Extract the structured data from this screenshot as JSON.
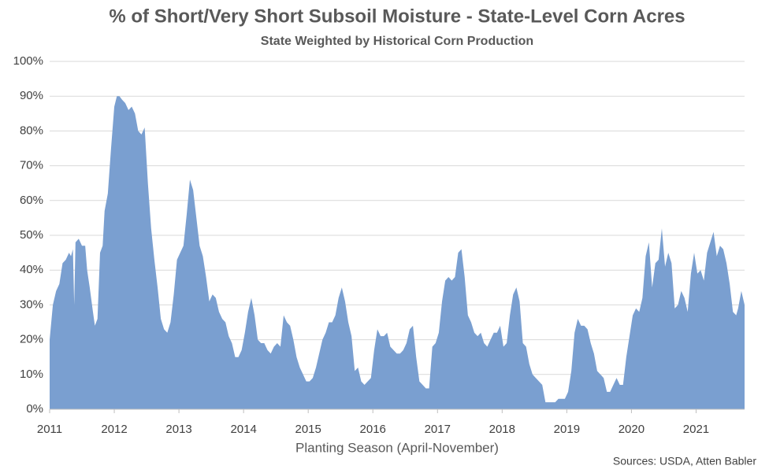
{
  "chart_data": {
    "type": "area",
    "title": "% of Short/Very Short Subsoil Moisture - State-Level Corn Acres",
    "subtitle": "State Weighted by Historical Corn Production",
    "x_label": "Planting Season (April-November)",
    "source": "Sources: USDA, Atten Babler",
    "color": "#7a9fd0",
    "grid": true,
    "xlim": [
      2011,
      2021.75
    ],
    "xticks": [
      2011,
      2012,
      2013,
      2014,
      2015,
      2016,
      2017,
      2018,
      2019,
      2020,
      2021
    ],
    "ylim": [
      0,
      100
    ],
    "yticks": [
      {
        "value": 0,
        "label": "0%"
      },
      {
        "value": 10,
        "label": "10%"
      },
      {
        "value": 20,
        "label": "20%"
      },
      {
        "value": 30,
        "label": "30%"
      },
      {
        "value": 40,
        "label": "40%"
      },
      {
        "value": 50,
        "label": "50%"
      },
      {
        "value": 60,
        "label": "60%"
      },
      {
        "value": 70,
        "label": "70%"
      },
      {
        "value": 80,
        "label": "80%"
      },
      {
        "value": 90,
        "label": "90%"
      },
      {
        "value": 100,
        "label": "100%"
      }
    ],
    "x": [
      2011.0,
      2011.05,
      2011.1,
      2011.15,
      2011.2,
      2011.25,
      2011.3,
      2011.33,
      2011.36,
      2011.38,
      2011.4,
      2011.45,
      2011.5,
      2011.55,
      2011.58,
      2011.62,
      2011.67,
      2011.7,
      2011.74,
      2011.78,
      2011.82,
      2011.85,
      2011.9,
      2011.95,
      2012.0,
      2012.04,
      2012.08,
      2012.12,
      2012.17,
      2012.22,
      2012.27,
      2012.32,
      2012.37,
      2012.42,
      2012.47,
      2012.52,
      2012.57,
      2012.62,
      2012.67,
      2012.72,
      2012.77,
      2012.82,
      2012.87,
      2012.92,
      2012.97,
      2013.02,
      2013.07,
      2013.12,
      2013.17,
      2013.22,
      2013.27,
      2013.32,
      2013.37,
      2013.42,
      2013.47,
      2013.52,
      2013.57,
      2013.62,
      2013.67,
      2013.72,
      2013.77,
      2013.82,
      2013.87,
      2013.92,
      2013.97,
      2014.02,
      2014.07,
      2014.12,
      2014.17,
      2014.22,
      2014.27,
      2014.32,
      2014.37,
      2014.42,
      2014.47,
      2014.52,
      2014.57,
      2014.62,
      2014.67,
      2014.72,
      2014.77,
      2014.82,
      2014.87,
      2014.92,
      2014.97,
      2015.02,
      2015.07,
      2015.12,
      2015.17,
      2015.22,
      2015.27,
      2015.32,
      2015.37,
      2015.42,
      2015.47,
      2015.52,
      2015.57,
      2015.62,
      2015.67,
      2015.72,
      2015.77,
      2015.82,
      2015.87,
      2015.92,
      2015.97,
      2016.02,
      2016.07,
      2016.12,
      2016.17,
      2016.22,
      2016.27,
      2016.32,
      2016.37,
      2016.42,
      2016.47,
      2016.52,
      2016.57,
      2016.62,
      2016.67,
      2016.72,
      2016.77,
      2016.82,
      2016.87,
      2016.92,
      2016.97,
      2017.02,
      2017.07,
      2017.12,
      2017.17,
      2017.22,
      2017.27,
      2017.32,
      2017.37,
      2017.42,
      2017.47,
      2017.52,
      2017.57,
      2017.62,
      2017.67,
      2017.72,
      2017.77,
      2017.82,
      2017.87,
      2017.92,
      2017.97,
      2018.02,
      2018.07,
      2018.12,
      2018.17,
      2018.22,
      2018.27,
      2018.32,
      2018.37,
      2018.42,
      2018.47,
      2018.52,
      2018.57,
      2018.62,
      2018.67,
      2018.72,
      2018.77,
      2018.82,
      2018.87,
      2018.92,
      2018.97,
      2019.02,
      2019.07,
      2019.12,
      2019.17,
      2019.22,
      2019.27,
      2019.32,
      2019.37,
      2019.42,
      2019.47,
      2019.52,
      2019.57,
      2019.62,
      2019.67,
      2019.72,
      2019.77,
      2019.82,
      2019.87,
      2019.92,
      2019.97,
      2020.02,
      2020.07,
      2020.12,
      2020.17,
      2020.22,
      2020.27,
      2020.32,
      2020.37,
      2020.42,
      2020.47,
      2020.52,
      2020.57,
      2020.62,
      2020.67,
      2020.72,
      2020.77,
      2020.82,
      2020.87,
      2020.92,
      2020.97,
      2021.02,
      2021.07,
      2021.12,
      2021.17,
      2021.22,
      2021.27,
      2021.32,
      2021.37,
      2021.42,
      2021.47,
      2021.52,
      2021.57,
      2021.62,
      2021.65,
      2021.7,
      2021.75
    ],
    "values": [
      20,
      30,
      34,
      36,
      42,
      43,
      45,
      44,
      46,
      30,
      48,
      49,
      47,
      47,
      40,
      35,
      28,
      24,
      26,
      45,
      47,
      57,
      62,
      75,
      87,
      90,
      90,
      89,
      88,
      86,
      87,
      85,
      80,
      79,
      81,
      65,
      52,
      43,
      35,
      26,
      23,
      22,
      25,
      33,
      43,
      45,
      47,
      56,
      66,
      63,
      55,
      47,
      44,
      38,
      31,
      33,
      32,
      28,
      26,
      25,
      21,
      19,
      15,
      15,
      17,
      22,
      28,
      32,
      27,
      20,
      19,
      19,
      17,
      16,
      18,
      19,
      18,
      27,
      25,
      24,
      20,
      15,
      12,
      10,
      8,
      8,
      9,
      12,
      16,
      20,
      22,
      25,
      25,
      27,
      32,
      35,
      31,
      25,
      21,
      11,
      12,
      8,
      7,
      8,
      9,
      17,
      23,
      21,
      21,
      22,
      18,
      17,
      16,
      16,
      17,
      19,
      23,
      24,
      15,
      8,
      7,
      6,
      6,
      18,
      19,
      22,
      31,
      37,
      38,
      37,
      38,
      45,
      46,
      38,
      27,
      25,
      22,
      21,
      22,
      19,
      18,
      20,
      22,
      22,
      24,
      18,
      19,
      27,
      33,
      35,
      31,
      19,
      18,
      13,
      10,
      9,
      8,
      7,
      2,
      2,
      2,
      2,
      3,
      3,
      3,
      5,
      11,
      22,
      26,
      24,
      24,
      23,
      19,
      16,
      11,
      10,
      9,
      5,
      5,
      7,
      9,
      7,
      7,
      15,
      21,
      27,
      29,
      28,
      32,
      44,
      48,
      35,
      42,
      43,
      52,
      41,
      45,
      42,
      29,
      30,
      34,
      32,
      28,
      39,
      45,
      39,
      40,
      37,
      45,
      48,
      51,
      44,
      47,
      46,
      42,
      36,
      28,
      27,
      29,
      34,
      30
    ]
  }
}
